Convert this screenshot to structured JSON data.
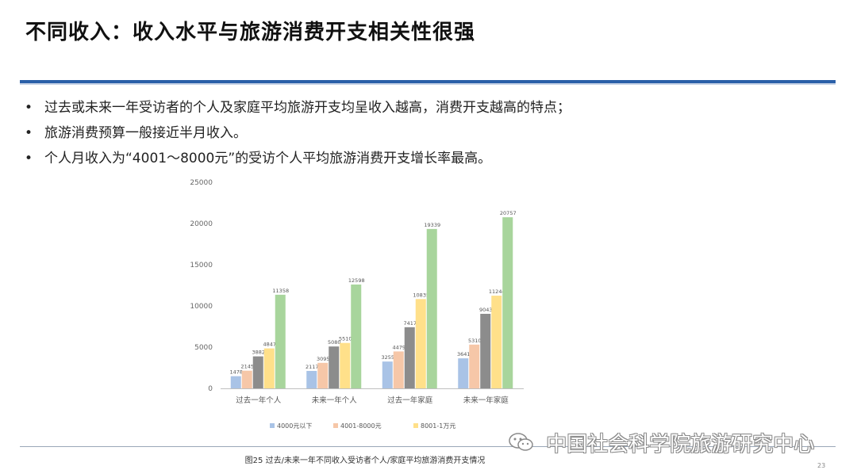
{
  "slide": {
    "title": "不同收入：收入水平与旅游消费开支相关性很强",
    "bullets": [
      "过去或未来一年受访者的个人及家庭平均旅游开支均呈收入越高，消费开支越高的特点；",
      "旅游消费预算一般接近半月收入。",
      "个人月收入为“4001～8000元”的受访个人平均旅游消费开支增长率最高。"
    ],
    "bullet_marker": "•",
    "caption": "图25 过去/未来一年不同收入受访者个人/家庭平均旅游消费开支情况",
    "watermark": "中国社会科学院旅游研究中心",
    "page_number": "23",
    "accent_color": "#2a5fa8"
  },
  "chart_data": {
    "type": "bar",
    "categories": [
      "过去一年个人",
      "未来一年个人",
      "过去一年家庭",
      "未来一年家庭"
    ],
    "series": [
      {
        "name": "4000元以下",
        "color": "#a9c3e6",
        "values": [
          1478,
          2117,
          3255,
          3641
        ]
      },
      {
        "name": "4001-8000元",
        "color": "#f6c7a8",
        "values": [
          2145,
          3095,
          4479,
          5310
        ]
      },
      {
        "name": "",
        "color": "#8c8c8c",
        "values": [
          3882,
          5080,
          7417,
          9043
        ]
      },
      {
        "name": "8001-1万元",
        "color": "#ffe08a",
        "values": [
          4847,
          5510,
          10835,
          11244
        ]
      },
      {
        "name": "",
        "color": "#a8d59c",
        "values": [
          11358,
          12598,
          19339,
          20757
        ]
      }
    ],
    "yticks": [
      0,
      5000,
      10000,
      15000,
      20000,
      25000
    ],
    "ylim": [
      0,
      25000
    ],
    "legend_position": "bottom",
    "grid": false
  }
}
